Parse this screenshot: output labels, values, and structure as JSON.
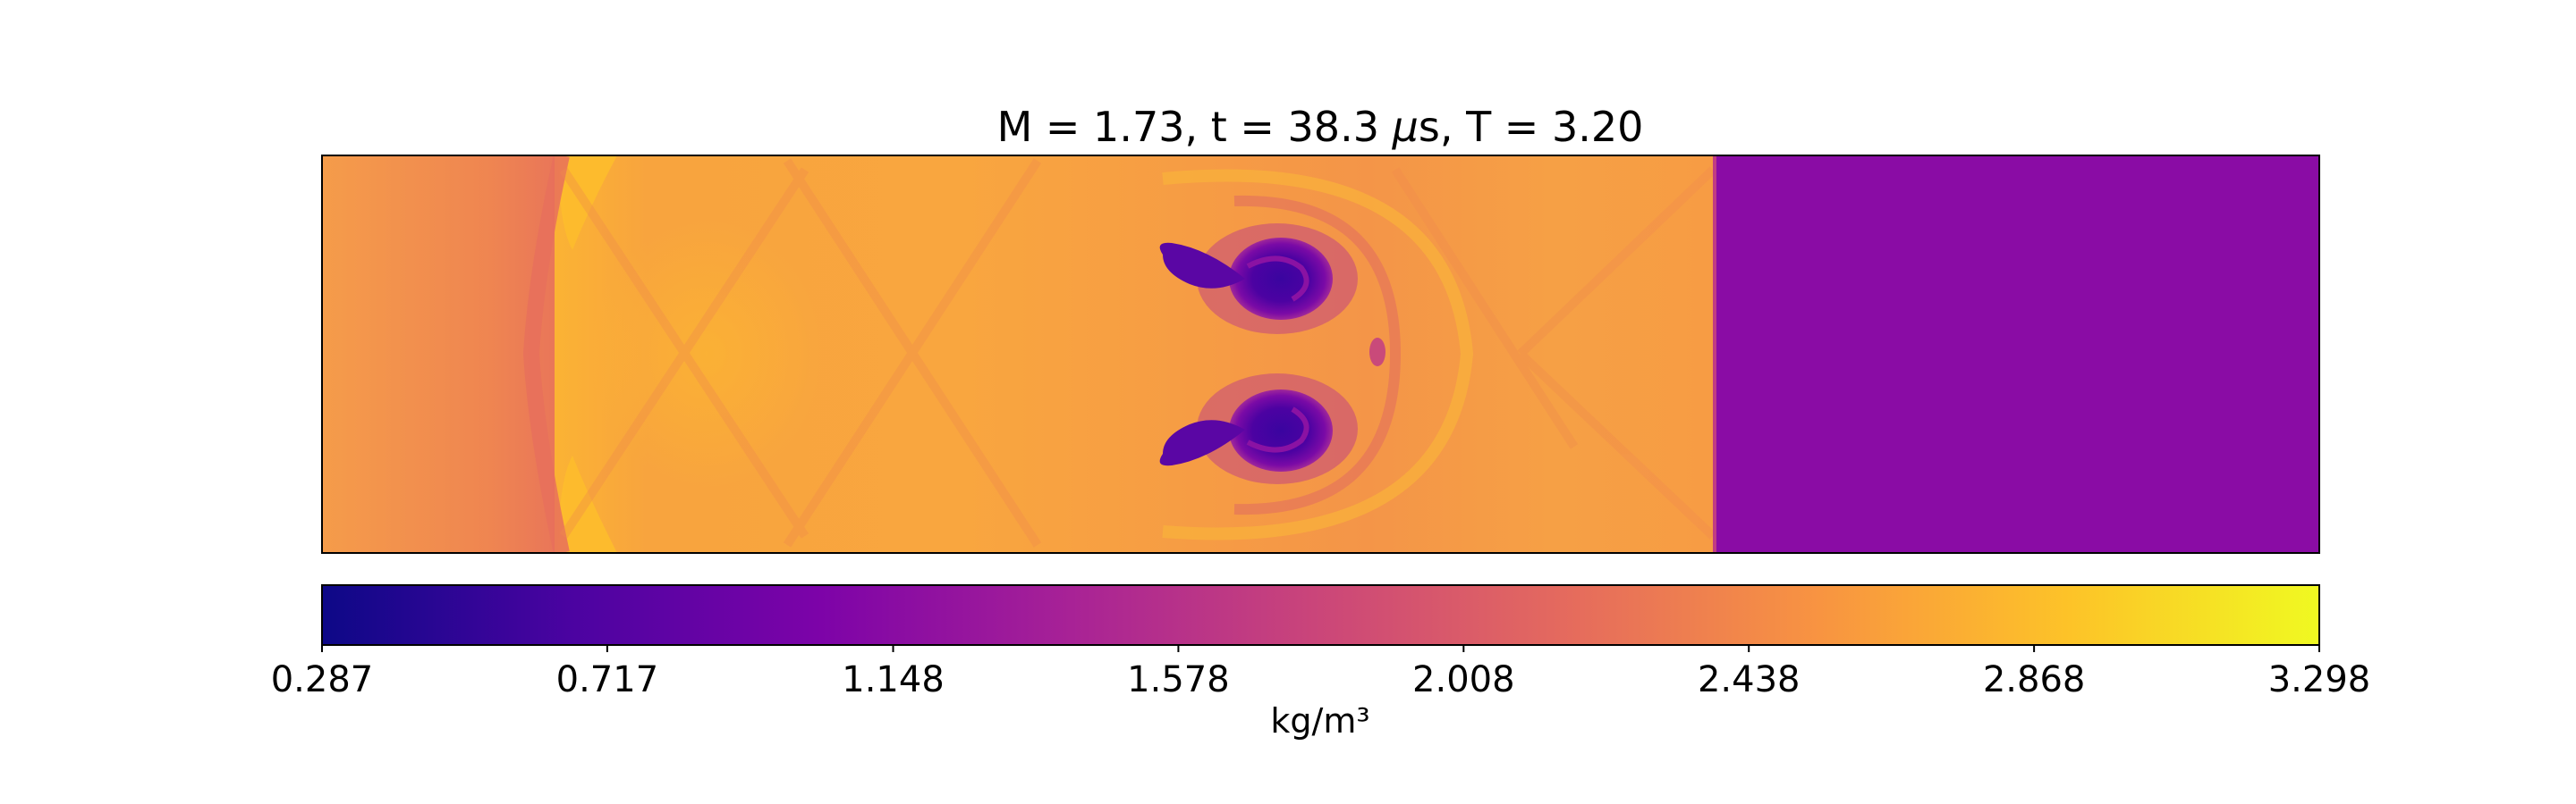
{
  "chart_data": {
    "type": "heatmap",
    "title": "M = 1.73, t = 38.3 μs, T = 3.20",
    "title_parts": {
      "prefix": "M = 1.73, t = 38.3 ",
      "mu": "μ",
      "suffix": "s, T = 3.20"
    },
    "field": "density",
    "colormap": "plasma",
    "colorbar": {
      "label": "kg/m³",
      "min": 0.287,
      "max": 3.298,
      "ticks": [
        "0.287",
        "0.717",
        "1.148",
        "1.578",
        "2.008",
        "2.438",
        "2.868",
        "3.298"
      ],
      "orientation": "horizontal",
      "placement": "below"
    },
    "regions": [
      {
        "name": "pre-shock left state",
        "x_frac": [
          0.0,
          0.12
        ],
        "approx_value": 2.25
      },
      {
        "name": "reflected wave front",
        "x_frac": [
          0.1,
          0.12
        ],
        "approx_value": 2.1
      },
      {
        "name": "shocked mixing region",
        "x_frac": [
          0.12,
          0.7
        ],
        "approx_value": 2.55
      },
      {
        "name": "vortex pair cores (low density)",
        "x_frac": [
          0.42,
          0.5
        ],
        "approx_value": 0.45
      },
      {
        "name": "transmitted shock",
        "x_frac": [
          0.7,
          0.7
        ],
        "approx_value": 2.4
      },
      {
        "name": "unshocked right gas",
        "x_frac": [
          0.7,
          1.0
        ],
        "approx_value": 1.0
      }
    ],
    "grid": false,
    "axes_visible": false
  }
}
